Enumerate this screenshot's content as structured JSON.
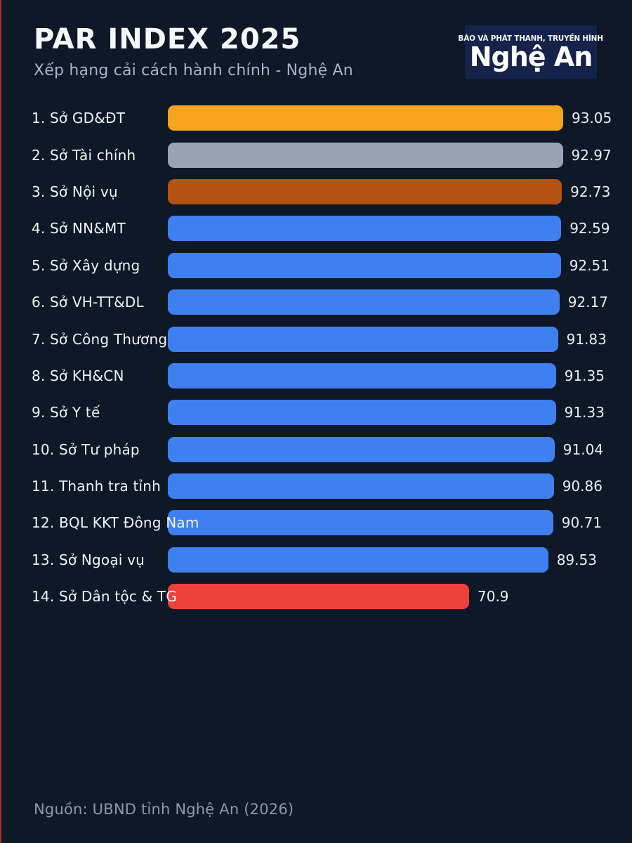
{
  "page": {
    "background_color": "#0e1827",
    "left_edge_stripe_color": "#c0392b"
  },
  "header": {
    "title": "PAR INDEX 2025",
    "subtitle": "Xếp hạng cải cách hành chính - Nghệ An"
  },
  "logo": {
    "line1": "BÁO VÀ PHÁT THANH, TRUYỀN HÌNH",
    "line2": "Nghệ An",
    "background_color": "#15234a",
    "text_color": "#ffffff"
  },
  "footer": {
    "source": "Nguồn: UBND tỉnh Nghệ An (2026)"
  },
  "chart_data": {
    "type": "bar",
    "orientation": "horizontal",
    "title": "PAR INDEX 2025",
    "subtitle": "Xếp hạng cải cách hành chính - Nghệ An",
    "xlabel": "",
    "ylabel": "",
    "xlim": [
      0,
      93.05
    ],
    "grid": false,
    "legend": false,
    "categories": [
      "1. Sở GD&ĐT",
      "2. Sở Tài chính",
      "3. Sở Nội vụ",
      "4. Sở NN&MT",
      "5. Sở Xây dựng",
      "6. Sở VH-TT&DL",
      "7. Sở Công Thương",
      "8. Sở KH&CN",
      "9. Sở Y tế",
      "10. Sở Tư pháp",
      "11. Thanh tra tỉnh",
      "12. BQL KKT Đông Nam",
      "13. Sở Ngoại vụ",
      "14. Sở Dân tộc & TG"
    ],
    "values": [
      93.05,
      92.97,
      92.73,
      92.59,
      92.51,
      92.17,
      91.83,
      91.35,
      91.33,
      91.04,
      90.86,
      90.71,
      89.53,
      70.9
    ],
    "value_labels": [
      "93.05",
      "92.97",
      "92.73",
      "92.59",
      "92.51",
      "92.17",
      "91.83",
      "91.35",
      "91.33",
      "91.04",
      "90.86",
      "90.71",
      "89.53",
      "70.9"
    ],
    "bar_colors": [
      "#f6a41f",
      "#97a4b4",
      "#b45214",
      "#3f80f0",
      "#3f80f0",
      "#3f80f0",
      "#3f80f0",
      "#3f80f0",
      "#3f80f0",
      "#3f80f0",
      "#3f80f0",
      "#3f80f0",
      "#3f80f0",
      "#ef413c"
    ],
    "color_legend": {
      "gold_rank1": "#f6a41f",
      "silver_rank2": "#97a4b4",
      "bronze_rank3": "#b45214",
      "default_blue": "#3f80f0",
      "lowest_red": "#ef413c"
    }
  }
}
